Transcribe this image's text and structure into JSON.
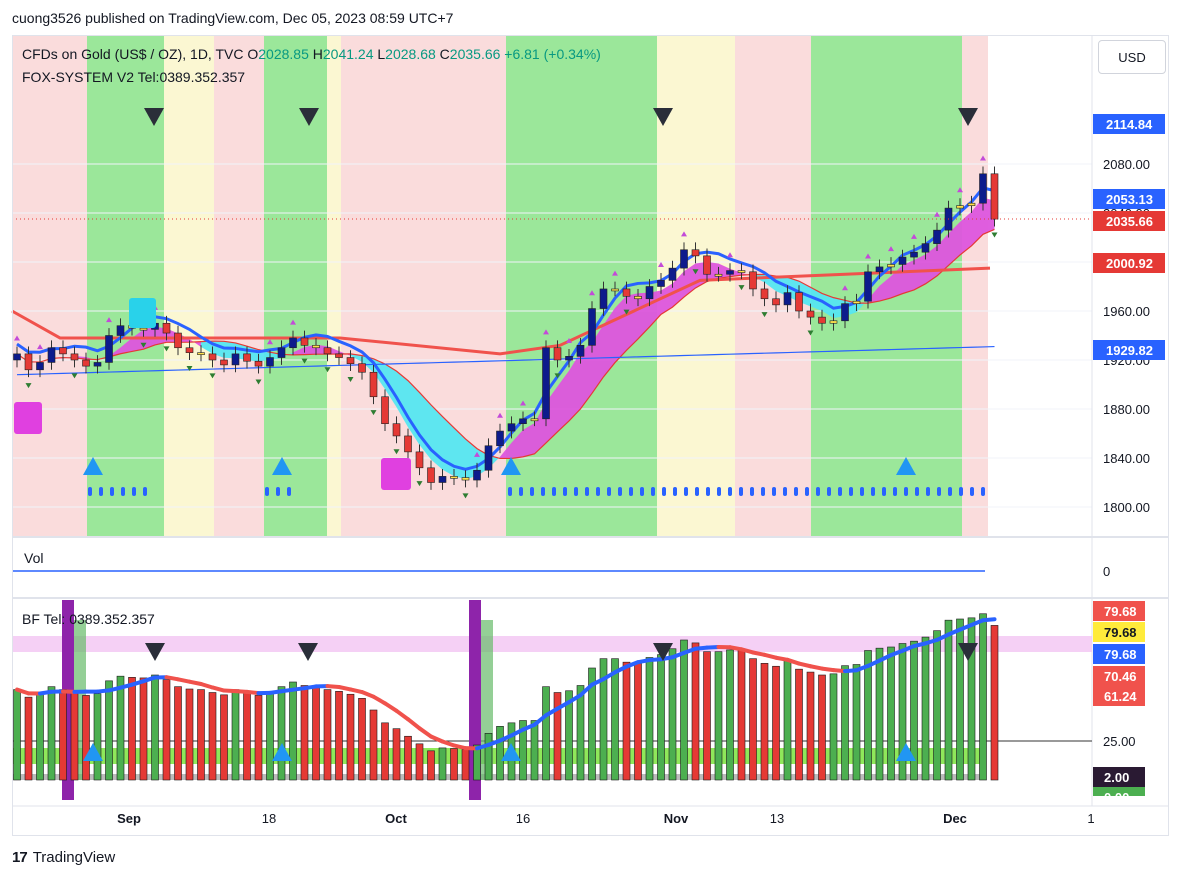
{
  "header": {
    "publisher_text": "cuong3526 published on TradingView.com, Dec 05, 2023 08:59 UTC+7"
  },
  "currency_button": "USD",
  "legend": {
    "symbol": "CFDs on Gold (US$ / OZ), 1D, TVC",
    "o_label": "O",
    "o_value": "2028.85",
    "h_label": "H",
    "h_value": "2041.24",
    "l_label": "L",
    "l_value": "2028.68",
    "c_label": "C",
    "c_value": "2035.66",
    "change": "+6.81 (+0.34%)",
    "indicator_label": "FOX-SYSTEM V2 Tel:0389.352.357"
  },
  "vol_pane": {
    "label": "Vol",
    "axis_value": "0"
  },
  "osc_pane": {
    "label": "BF Tel: 0389.352.357"
  },
  "footer": {
    "brand": "TradingView"
  },
  "colors": {
    "up_candle": "#0d1b8c",
    "down_candle": "#e53935",
    "neutral_candle": "#ffe14d",
    "green_zone": "#9be79a",
    "pink_zone": "#fadcdc",
    "yellow_zone": "#fbf7d2",
    "cloud_bull": "#dd55dd",
    "cloud_bear": "#55e6f0",
    "ma_red": "#f0524c",
    "ma_blue": "#2962ff"
  },
  "chart_data": [
    {
      "type": "candlestick",
      "pane": "price",
      "xlabels": [
        "Sep",
        "18",
        "Oct",
        "16",
        "Nov",
        "13",
        "Dec",
        "1"
      ],
      "ylim": [
        1780,
        2140
      ],
      "yticks": [
        "1800.00",
        "1840.00",
        "1880.00",
        "1920.00",
        "1960.00",
        "2000.00",
        "2040.00",
        "2080.00"
      ],
      "price_tags": [
        {
          "value": "2114.84",
          "color": "#2962ff"
        },
        {
          "value": "2053.13",
          "color": "#2962ff"
        },
        {
          "value": "2035.66",
          "color": "#e53935"
        },
        {
          "value": "2000.92",
          "color": "#e53935"
        },
        {
          "value": "1929.82",
          "color": "#2962ff"
        }
      ],
      "candles_close": [
        1925,
        1912,
        1918,
        1930,
        1925,
        1920,
        1915,
        1918,
        1940,
        1948,
        1946,
        1945,
        1950,
        1942,
        1930,
        1926,
        1925,
        1920,
        1916,
        1925,
        1919,
        1915,
        1922,
        1930,
        1938,
        1932,
        1930,
        1925,
        1922,
        1917,
        1910,
        1890,
        1868,
        1858,
        1845,
        1832,
        1820,
        1825,
        1824,
        1822,
        1830,
        1850,
        1862,
        1868,
        1872,
        1872,
        1930,
        1920,
        1923,
        1932,
        1962,
        1978,
        1978,
        1972,
        1970,
        1980,
        1985,
        1995,
        2010,
        2005,
        1990,
        1990,
        1993,
        1992,
        1978,
        1970,
        1965,
        1975,
        1960,
        1955,
        1950,
        1952,
        1966,
        1968,
        1992,
        1996,
        1998,
        2004,
        2008,
        2015,
        2026,
        2044,
        2046,
        2048,
        2072,
        2035
      ],
      "ma_blue_long": [
        1910,
        1912,
        1930
      ],
      "ma_red_long": [
        1960,
        1940,
        1925,
        1935,
        1993
      ]
    },
    {
      "type": "line",
      "pane": "volume",
      "label": "Vol",
      "values": [
        0
      ]
    },
    {
      "type": "bar",
      "pane": "oscillator",
      "yticks": [
        "25.00"
      ],
      "level_tags": [
        {
          "value": "79.68",
          "color": "#f0524c"
        },
        {
          "value": "79.68",
          "color": "#ffeb3b"
        },
        {
          "value": "79.68",
          "color": "#2962ff"
        },
        {
          "value": "70.46",
          "color": "#f0524c"
        },
        {
          "value": "61.24",
          "color": "#f0524c"
        },
        {
          "value": "2.00",
          "color": "#2a1a33"
        },
        {
          "value": "0.00",
          "color": "#4caf50"
        }
      ]
    }
  ]
}
